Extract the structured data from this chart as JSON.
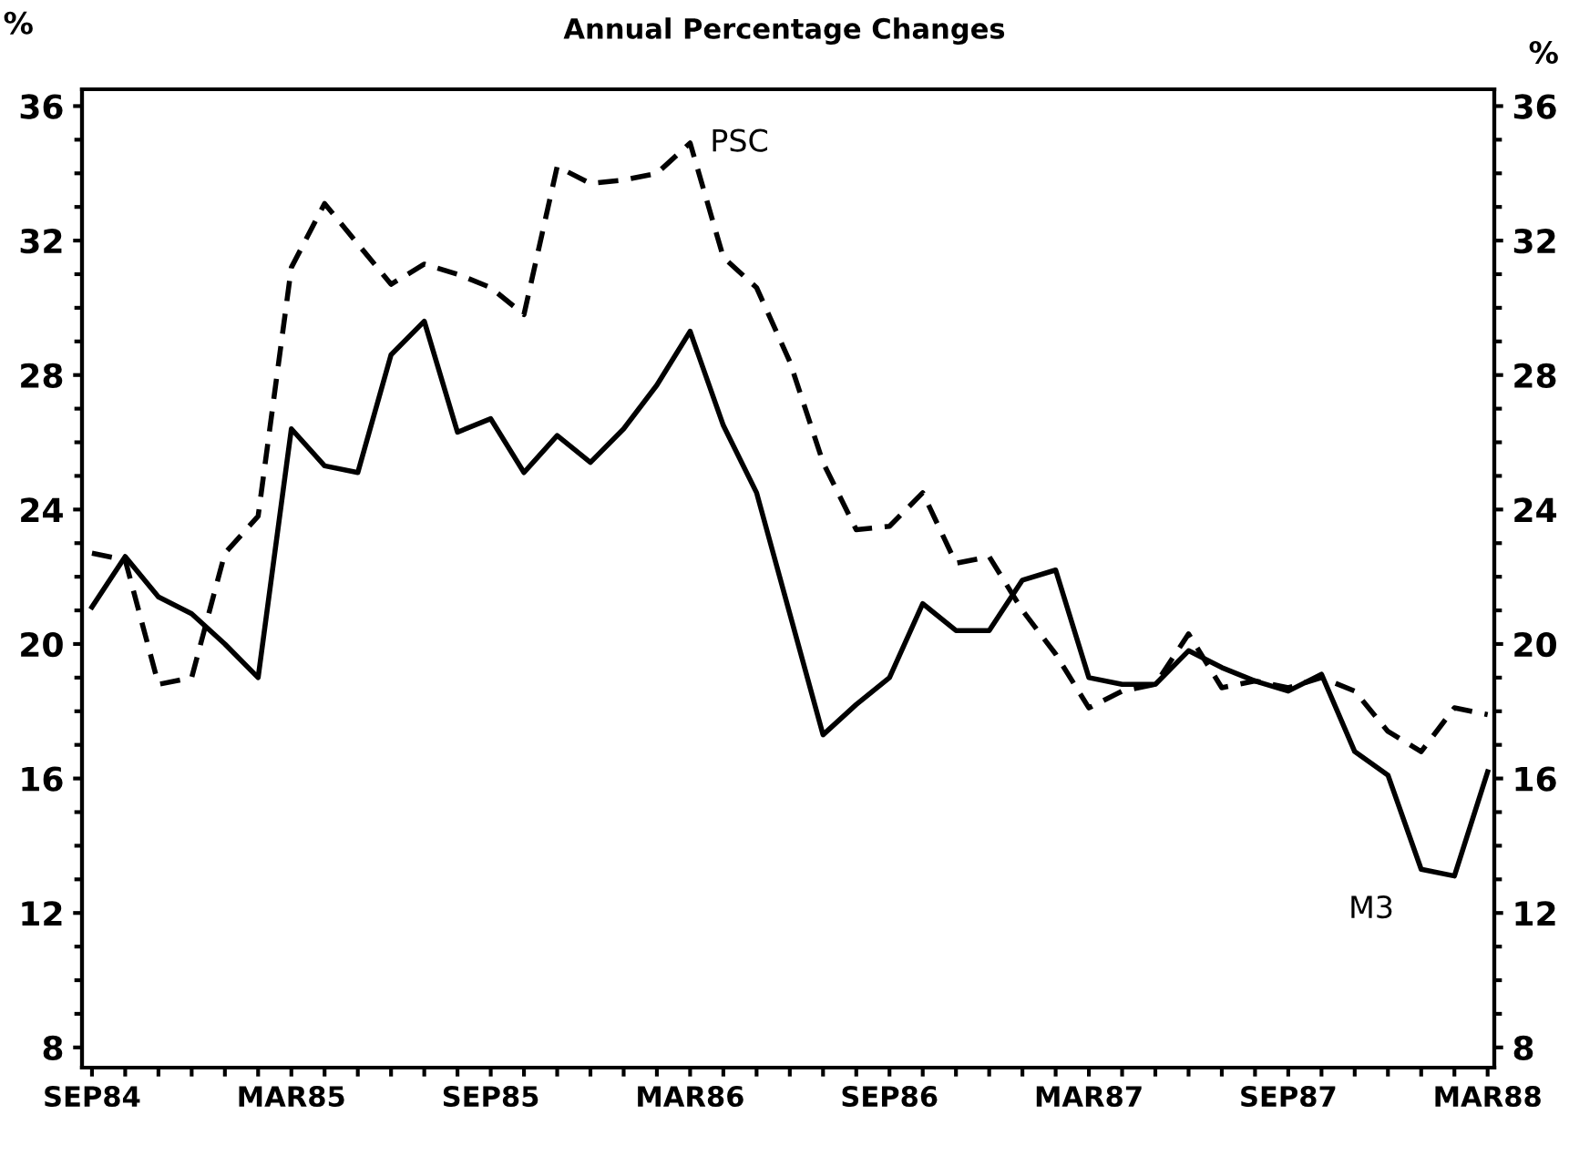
{
  "chart_data": {
    "type": "line",
    "title": "Annual Percentage Changes",
    "ylabel": "%",
    "y2label": "%",
    "categories": [
      "SEP84",
      null,
      null,
      null,
      null,
      null,
      "MAR85",
      null,
      null,
      null,
      null,
      null,
      "SEP85",
      null,
      null,
      null,
      null,
      null,
      "MAR86",
      null,
      null,
      null,
      null,
      null,
      "SEP86",
      null,
      null,
      null,
      null,
      null,
      "MAR87",
      null,
      null,
      null,
      null,
      null,
      "SEP87",
      null,
      null,
      null,
      null,
      null,
      "MAR88"
    ],
    "series": [
      {
        "name": "M3",
        "color": "#000000",
        "line_style": "solid",
        "values": [
          21.1,
          22.6,
          21.4,
          20.9,
          20.0,
          19.0,
          26.4,
          25.3,
          25.1,
          28.6,
          29.6,
          26.3,
          26.7,
          25.1,
          26.2,
          25.4,
          26.4,
          27.7,
          29.3,
          26.5,
          24.5,
          20.9,
          17.3,
          18.2,
          19.0,
          21.2,
          20.4,
          20.4,
          21.9,
          22.2,
          19.0,
          18.8,
          18.8,
          19.8,
          19.3,
          18.9,
          18.6,
          19.1,
          16.8,
          16.1,
          13.3,
          13.1,
          16.2
        ]
      },
      {
        "name": "PSC",
        "color": "#000000",
        "line_style": "dashed",
        "values": [
          22.7,
          22.5,
          18.8,
          19.0,
          22.7,
          23.8,
          31.2,
          33.1,
          31.9,
          30.7,
          31.3,
          31.0,
          30.6,
          29.8,
          34.2,
          33.7,
          33.8,
          34.0,
          34.9,
          31.5,
          30.6,
          28.4,
          25.4,
          23.4,
          23.5,
          24.5,
          22.4,
          22.6,
          21.0,
          19.7,
          18.1,
          18.6,
          18.8,
          20.3,
          18.7,
          18.9,
          18.7,
          19.0,
          18.6,
          17.4,
          16.8,
          18.1,
          17.9
        ]
      }
    ],
    "ylim": [
      7.4,
      36.5
    ],
    "yticks": [
      8,
      12,
      16,
      20,
      24,
      28,
      32,
      36
    ],
    "y2lim": [
      7.4,
      36.5
    ],
    "y2ticks": [
      8,
      12,
      16,
      20,
      24,
      28,
      32,
      36
    ],
    "grid": false,
    "legend": false,
    "marker": "none"
  }
}
